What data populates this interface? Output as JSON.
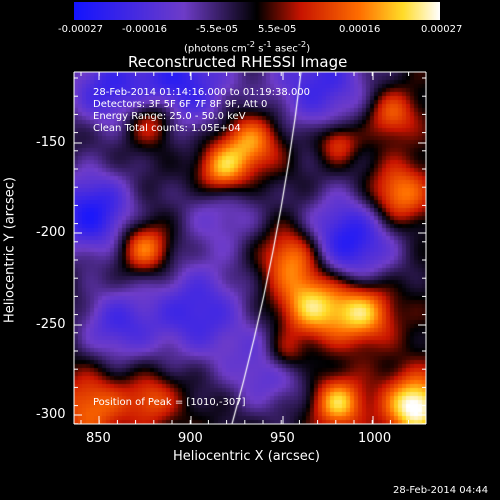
{
  "colorbar": {
    "ticks": [
      "-0.00027",
      "-0.00016",
      "-5.5e-05",
      "5.5e-05",
      "0.00016",
      "0.00027"
    ],
    "units_text": "(photons cm",
    "units_sup1": "-2",
    "units_mid": " s",
    "units_sup2": "-1",
    "units_end": " asec",
    "units_sup3": "-2",
    "units_close": ")"
  },
  "plot": {
    "title": "Reconstructed RHESSI Image",
    "xlabel": "Heliocentric X (arcsec)",
    "ylabel": "Heliocentric Y (arcsec)",
    "xticks": [
      "850",
      "900",
      "950",
      "1000"
    ],
    "yticks": [
      "-150",
      "-200",
      "-250",
      "-300"
    ],
    "annotations": [
      "28-Feb-2014 01:14:16.000 to 01:19:38.000",
      "Detectors: 3F 5F 6F 7F 8F 9F, Att 0",
      "Energy Range: 25.0 - 50.0 keV",
      "Clean      Total counts: 1.05E+04"
    ],
    "peak_label": "Position of Peak = [1010,-307]"
  },
  "footer": {
    "timestamp": "28-Feb-2014 04:44"
  },
  "colors": {
    "background": "#000000",
    "text": "#ffffff"
  }
}
